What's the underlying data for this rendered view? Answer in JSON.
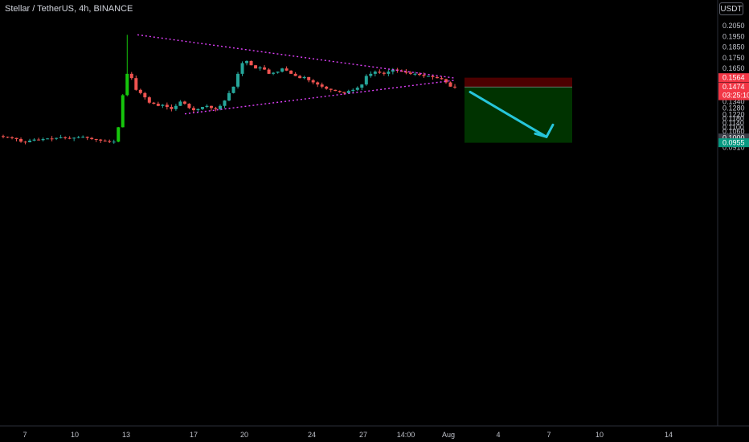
{
  "header": {
    "symbol_title": "Stellar / TetherUS, 4h, BINANCE",
    "currency_label": "USDT"
  },
  "chart_data": {
    "type": "candlestick",
    "title": "Stellar / TetherUS, 4h, BINANCE",
    "y_axis_ticks": [
      "0.2050",
      "0.1950",
      "0.1850",
      "0.1750",
      "0.1650",
      "0.1550",
      "0.1400",
      "0.1340",
      "0.1280",
      "0.1220",
      "0.1180",
      "0.1140",
      "0.1100",
      "0.1060",
      "0.1020",
      "0.0980",
      "0.0945",
      "0.0910"
    ],
    "x_axis_ticks": [
      "7",
      "10",
      "13",
      "17",
      "20",
      "24",
      "27",
      "14:00",
      "Aug",
      "4",
      "7",
      "10",
      "14"
    ],
    "price_labels": [
      {
        "text": "0.1564",
        "value": 0.1564,
        "bg": "#f23645",
        "color": "#ffffff"
      },
      {
        "text": "0.1477",
        "value": 0.1477,
        "bg": "#3c3f48",
        "color": "#ffffff"
      },
      {
        "text": "0.1474",
        "value": 0.1474,
        "bg": "#f23645",
        "color": "#ffffff"
      },
      {
        "text": "0.1000",
        "value": 0.1,
        "bg": "#3c3f48",
        "color": "#ffffff"
      },
      {
        "text": "0.0955",
        "value": 0.0955,
        "bg": "#089981",
        "color": "#ffffff"
      }
    ],
    "countdown_label": "03:25:10",
    "series": [
      {
        "name": "XLMUSDT",
        "ohlc_close_path": [
          0.101,
          0.1005,
          0.1,
          0.099,
          0.0965,
          0.096,
          0.0975,
          0.0985,
          0.098,
          0.099,
          0.0995,
          0.0992,
          0.1,
          0.1005,
          0.1,
          0.0995,
          0.1002,
          0.1008,
          0.101,
          0.1,
          0.099,
          0.0985,
          0.0975,
          0.097,
          0.0962,
          0.0965,
          0.11,
          0.14,
          0.16,
          0.156,
          0.145,
          0.142,
          0.138,
          0.133,
          0.132,
          0.13,
          0.131,
          0.129,
          0.127,
          0.13,
          0.134,
          0.132,
          0.128,
          0.126,
          0.127,
          0.129,
          0.13,
          0.128,
          0.127,
          0.13,
          0.135,
          0.142,
          0.148,
          0.16,
          0.17,
          0.172,
          0.168,
          0.165,
          0.166,
          0.164,
          0.16,
          0.161,
          0.162,
          0.165,
          0.163,
          0.16,
          0.158,
          0.156,
          0.157,
          0.154,
          0.152,
          0.15,
          0.148,
          0.146,
          0.145,
          0.144,
          0.143,
          0.142,
          0.144,
          0.145,
          0.147,
          0.15,
          0.158,
          0.16,
          0.162,
          0.161,
          0.16,
          0.162,
          0.164,
          0.163,
          0.162,
          0.161,
          0.16,
          0.16,
          0.159,
          0.158,
          0.158,
          0.157,
          0.156,
          0.155,
          0.152,
          0.148,
          0.1474
        ]
      }
    ],
    "drawings": {
      "triangle_upper_line": {
        "start": [
          "13",
          0.1965
        ],
        "end": [
          "Aug",
          0.156
        ]
      },
      "triangle_lower_line": {
        "start": [
          "17",
          0.1225
        ],
        "end": [
          "Aug",
          0.154
        ]
      },
      "short_position": {
        "entry": 0.1477,
        "stop": 0.1564,
        "target": 0.0955
      },
      "arrow": {
        "from": 0.143,
        "to": 0.101
      }
    },
    "colors": {
      "up": "#26a69a",
      "down": "#ef5350",
      "long_candle": "#16c60c",
      "trendline": "#e040fb",
      "arrow": "#26c6da",
      "stop_zone": "#4d0000",
      "target_zone": "#003300"
    }
  }
}
